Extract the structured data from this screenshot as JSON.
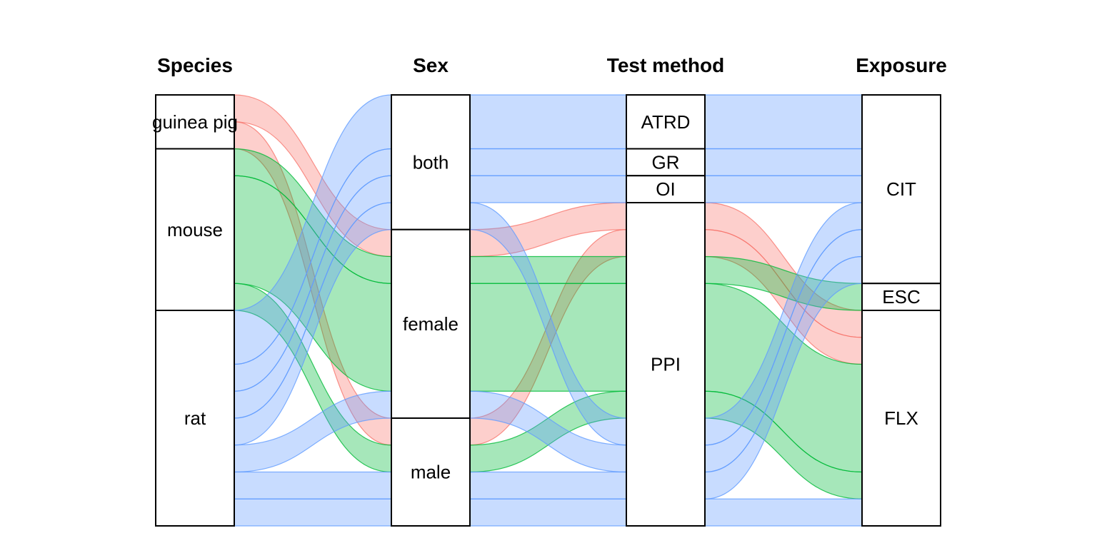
{
  "chart_data": {
    "type": "alluvial",
    "axes": [
      "Species",
      "Sex",
      "Test method",
      "Exposure"
    ],
    "strata": {
      "Species": [
        "guinea pig",
        "mouse",
        "rat"
      ],
      "Sex": [
        "both",
        "female",
        "male"
      ],
      "Test method": [
        "ATRD",
        "GR",
        "OI",
        "PPI"
      ],
      "Exposure": [
        "CIT",
        "ESC",
        "FLX"
      ]
    },
    "flows": [
      {
        "species": "guinea pig",
        "sex": "female",
        "method": "PPI",
        "exposure": "FLX",
        "value": 1
      },
      {
        "species": "guinea pig",
        "sex": "male",
        "method": "PPI",
        "exposure": "FLX",
        "value": 1
      },
      {
        "species": "mouse",
        "sex": "female",
        "method": "PPI",
        "exposure": "FLX",
        "value": 4
      },
      {
        "species": "mouse",
        "sex": "female",
        "method": "PPI",
        "exposure": "ESC",
        "value": 1
      },
      {
        "species": "mouse",
        "sex": "male",
        "method": "PPI",
        "exposure": "FLX",
        "value": 1
      },
      {
        "species": "rat",
        "sex": "both",
        "method": "ATRD",
        "exposure": "CIT",
        "value": 2
      },
      {
        "species": "rat",
        "sex": "both",
        "method": "GR",
        "exposure": "CIT",
        "value": 1
      },
      {
        "species": "rat",
        "sex": "both",
        "method": "OI",
        "exposure": "CIT",
        "value": 1
      },
      {
        "species": "rat",
        "sex": "both",
        "method": "PPI",
        "exposure": "CIT",
        "value": 1
      },
      {
        "species": "rat",
        "sex": "female",
        "method": "PPI",
        "exposure": "CIT",
        "value": 1
      },
      {
        "species": "rat",
        "sex": "male",
        "method": "PPI",
        "exposure": "FLX",
        "value": 1
      },
      {
        "species": "rat",
        "sex": "male",
        "method": "PPI",
        "exposure": "CIT",
        "value": 1
      }
    ],
    "colors": {
      "guinea pig": "#f8766d",
      "mouse": "#00ba38",
      "rat": "#619cff"
    },
    "fill_opacity": 0.35
  }
}
